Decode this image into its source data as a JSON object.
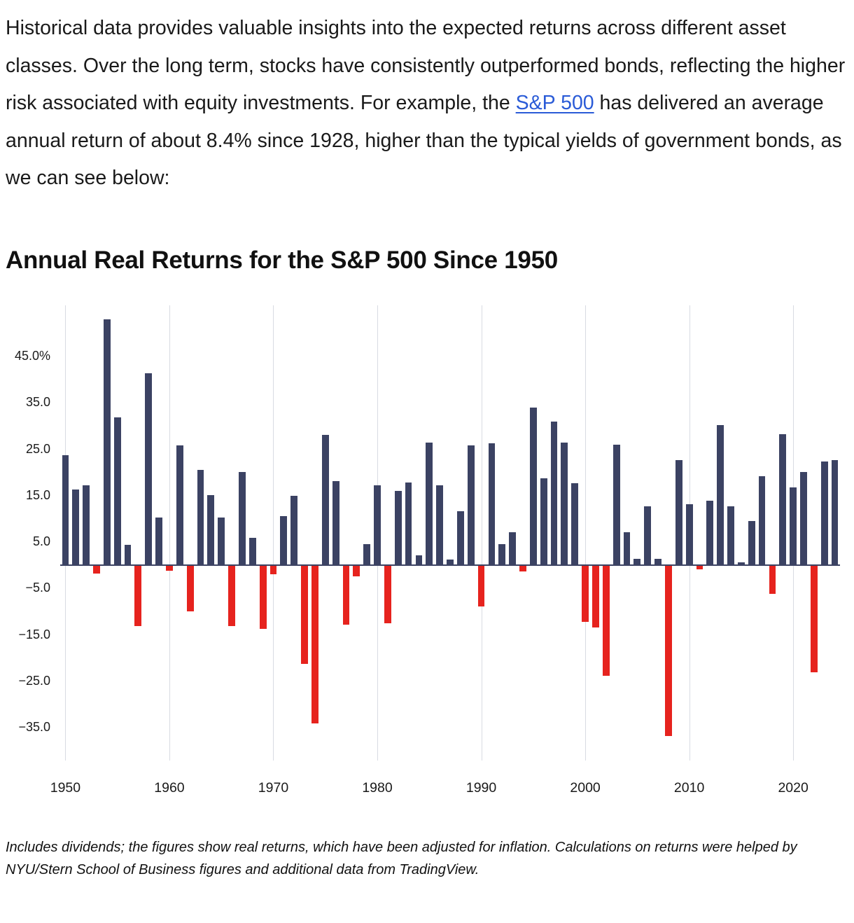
{
  "intro": {
    "text_before_link": "Historical data provides valuable insights into the expected returns across different asset classes. Over the long term, stocks have consistently outperformed bonds, reflecting the higher risk associated with equity investments. For example, the ",
    "link_text": "S&P 500",
    "text_after_link": " has delivered an average annual return of about 8.4% since 1928, higher than the typical yields of government bonds, as we can see below:"
  },
  "chart_data": {
    "type": "bar",
    "title": "Annual Real Returns for the S&P 500 Since 1950",
    "xlabel": "",
    "ylabel": "",
    "ylim": [
      -42,
      56
    ],
    "grid": "vertical-decade-gridlines",
    "legend": "none",
    "colors": {
      "positive": "#3b4263",
      "negative": "#e6231e",
      "gridline": "#d8dbe2",
      "zero_line": "#3b4263"
    },
    "yticks": [
      {
        "value": 45,
        "label": "45.0%"
      },
      {
        "value": 35,
        "label": "35.0"
      },
      {
        "value": 25,
        "label": "25.0"
      },
      {
        "value": 15,
        "label": "15.0"
      },
      {
        "value": 5,
        "label": "5.0"
      },
      {
        "value": -5,
        "label": "−5.0"
      },
      {
        "value": -15,
        "label": "−15.0"
      },
      {
        "value": -25,
        "label": "−25.0"
      },
      {
        "value": -35,
        "label": "−35.0"
      }
    ],
    "xticks": [
      1950,
      1960,
      1970,
      1980,
      1990,
      2000,
      2010,
      2020
    ],
    "years": [
      1950,
      1951,
      1952,
      1953,
      1954,
      1955,
      1956,
      1957,
      1958,
      1959,
      1960,
      1961,
      1962,
      1963,
      1964,
      1965,
      1966,
      1967,
      1968,
      1969,
      1970,
      1971,
      1972,
      1973,
      1974,
      1975,
      1976,
      1977,
      1978,
      1979,
      1980,
      1981,
      1982,
      1983,
      1984,
      1985,
      1986,
      1987,
      1988,
      1989,
      1990,
      1991,
      1992,
      1993,
      1994,
      1995,
      1996,
      1997,
      1998,
      1999,
      2000,
      2001,
      2002,
      2003,
      2004,
      2005,
      2006,
      2007,
      2008,
      2009,
      2010,
      2011,
      2012,
      2013,
      2014,
      2015,
      2016,
      2017,
      2018,
      2019,
      2020,
      2021,
      2022,
      2023,
      2024
    ],
    "values": [
      23.7,
      16.3,
      17.2,
      -1.7,
      52.9,
      31.8,
      4.4,
      -13.1,
      41.3,
      10.3,
      -1.1,
      25.9,
      -9.9,
      20.6,
      15.1,
      10.3,
      -13.1,
      20.1,
      5.9,
      -13.6,
      -1.9,
      10.6,
      14.9,
      -21.2,
      -34.1,
      28.1,
      18.1,
      -12.8,
      -2.3,
      4.6,
      17.2,
      -12.5,
      16.0,
      17.9,
      2.1,
      26.4,
      17.2,
      1.3,
      11.7,
      25.8,
      -8.8,
      26.3,
      4.5,
      7.1,
      -1.3,
      33.9,
      18.8,
      30.9,
      26.4,
      17.7,
      -12.1,
      -13.3,
      -23.8,
      26.0,
      7.2,
      1.4,
      12.7,
      1.4,
      -36.7,
      22.6,
      13.2,
      -0.9,
      13.9,
      30.2,
      12.7,
      0.7,
      9.6,
      19.2,
      -6.2,
      28.3,
      16.8,
      20.1,
      -23.0,
      22.3,
      22.6
    ]
  },
  "caption": {
    "text": "Includes dividends; the figures show real returns, which have been adjusted for inflation. Calculations on returns were helped by NYU/Stern School of Business figures and additional data from TradingView."
  }
}
